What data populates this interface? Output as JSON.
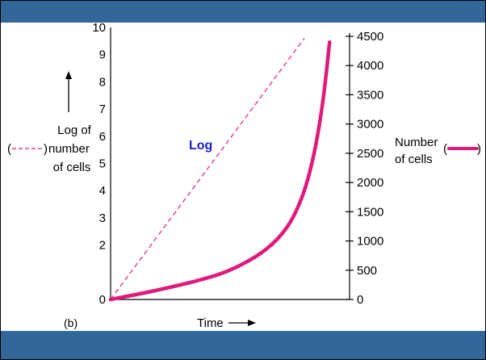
{
  "colors": {
    "band": "#336699",
    "number_line": "#e0197a",
    "log_line": "#e0197a",
    "log_label": "#1e1ed2",
    "axis": "#000000"
  },
  "chart_data": {
    "type": "line",
    "panel_label": "(b)",
    "xlabel": "Time",
    "grid": false,
    "left_axis": {
      "label_lines": [
        "Log of",
        "number",
        "of cells"
      ],
      "legend_open": "(",
      "legend_close": ")",
      "ticks": [
        0,
        2,
        3,
        4,
        5,
        6,
        7,
        8,
        9,
        10
      ],
      "ylim": [
        0,
        10
      ]
    },
    "right_axis": {
      "label_lines": [
        "Number",
        "of cells"
      ],
      "legend_open": "(",
      "legend_close": ")",
      "ticks": [
        0,
        500,
        1000,
        1500,
        2000,
        2500,
        3000,
        3500,
        4000,
        4500
      ],
      "ylim": [
        0,
        4500
      ]
    },
    "series": [
      {
        "name": "Log",
        "axis": "left",
        "style": "dashed",
        "x": [
          0,
          1
        ],
        "y": [
          0,
          9.6
        ]
      },
      {
        "axis": "right",
        "style": "solid",
        "x": [
          0,
          0.2,
          0.4,
          0.55,
          0.7,
          0.8,
          0.87,
          0.92,
          0.96,
          0.99
        ],
        "y": [
          0,
          150,
          330,
          520,
          850,
          1250,
          1800,
          2500,
          3400,
          4400
        ]
      }
    ]
  }
}
